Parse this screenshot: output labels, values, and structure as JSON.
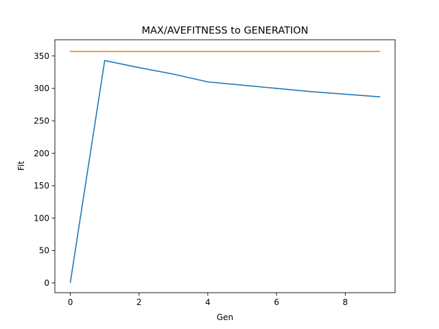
{
  "chart_data": {
    "type": "line",
    "title": "MAX/AVEFITNESS to GENERATION",
    "xlabel": "Gen",
    "ylabel": "Fit",
    "xlim": [
      -0.45,
      9.45
    ],
    "ylim": [
      -15,
      375
    ],
    "xticks": [
      0,
      2,
      4,
      6,
      8
    ],
    "yticks": [
      0,
      50,
      100,
      150,
      200,
      250,
      300,
      350
    ],
    "grid": false,
    "x": [
      0,
      1,
      2,
      3,
      4,
      5,
      6,
      7,
      8,
      9
    ],
    "series": [
      {
        "color": "#1f77b4",
        "values": [
          1,
          343,
          332,
          322,
          310,
          305,
          300,
          295,
          291,
          287
        ]
      },
      {
        "color": "#ff7f0e",
        "values": [
          357,
          357,
          357,
          357,
          357,
          357,
          357,
          357,
          357,
          357
        ]
      }
    ]
  }
}
